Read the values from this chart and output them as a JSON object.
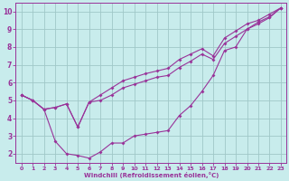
{
  "xlabel": "Windchill (Refroidissement éolien,°C)",
  "background_color": "#c8ecec",
  "grid_color": "#a0c8c8",
  "line_color": "#993399",
  "xlim": [
    -0.5,
    23.5
  ],
  "ylim": [
    1.5,
    10.5
  ],
  "xticks": [
    0,
    1,
    2,
    3,
    4,
    5,
    6,
    7,
    8,
    9,
    10,
    11,
    12,
    13,
    14,
    15,
    16,
    17,
    18,
    19,
    20,
    21,
    22,
    23
  ],
  "yticks": [
    2,
    3,
    4,
    5,
    6,
    7,
    8,
    9,
    10
  ],
  "line1_x": [
    0,
    1,
    2,
    3,
    4,
    5,
    6,
    7,
    8,
    9,
    10,
    11,
    12,
    13,
    14,
    15,
    16,
    17,
    18,
    19,
    20,
    21,
    22,
    23
  ],
  "line1_y": [
    5.3,
    5.0,
    4.5,
    2.7,
    2.0,
    1.9,
    1.75,
    2.1,
    2.6,
    2.6,
    3.0,
    3.1,
    3.2,
    3.3,
    4.15,
    4.7,
    5.5,
    6.4,
    7.8,
    8.0,
    9.0,
    9.4,
    9.7,
    10.2
  ],
  "line2_x": [
    0,
    1,
    2,
    3,
    4,
    5,
    6,
    7,
    8,
    9,
    10,
    11,
    12,
    13,
    14,
    15,
    16,
    17,
    18,
    19,
    20,
    21,
    22,
    23
  ],
  "line2_y": [
    5.3,
    5.0,
    4.5,
    4.6,
    4.8,
    3.5,
    4.9,
    5.3,
    5.7,
    6.1,
    6.3,
    6.5,
    6.65,
    6.8,
    7.3,
    7.6,
    7.9,
    7.5,
    8.5,
    8.9,
    9.3,
    9.5,
    9.85,
    10.2
  ],
  "line3_x": [
    0,
    1,
    2,
    3,
    4,
    5,
    6,
    7,
    8,
    9,
    10,
    11,
    12,
    13,
    14,
    15,
    16,
    17,
    18,
    19,
    20,
    21,
    22,
    23
  ],
  "line3_y": [
    5.3,
    5.0,
    4.5,
    4.6,
    4.8,
    3.5,
    4.9,
    5.0,
    5.3,
    5.7,
    5.9,
    6.1,
    6.3,
    6.4,
    6.85,
    7.2,
    7.6,
    7.3,
    8.2,
    8.6,
    9.0,
    9.3,
    9.65,
    10.2
  ]
}
